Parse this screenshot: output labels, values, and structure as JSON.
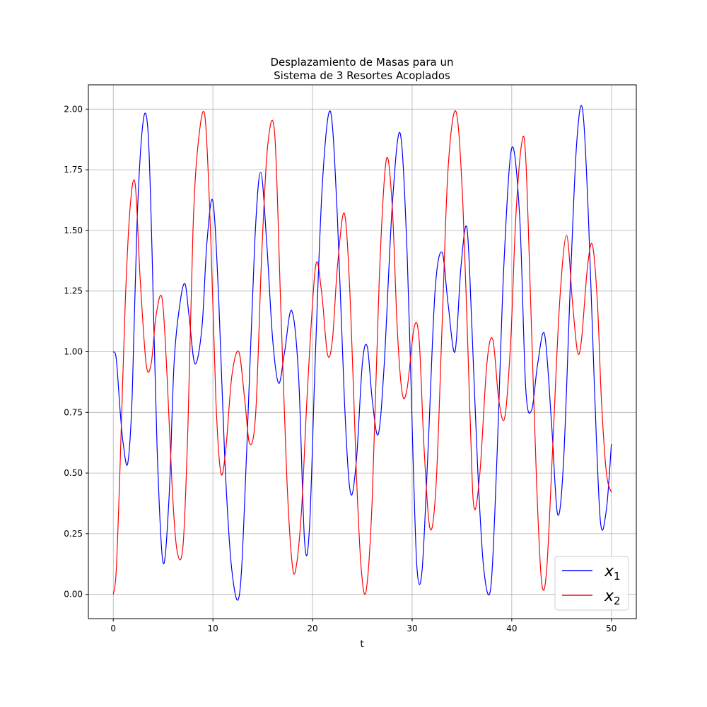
{
  "chart_data": {
    "type": "line",
    "title_lines": [
      "Desplazamiento de Masas para un",
      "Sistema de 3 Resortes Acoplados"
    ],
    "xlabel": "t",
    "ylabel": "",
    "xlim": [
      -2.5,
      52.5
    ],
    "ylim": [
      -0.1,
      2.1
    ],
    "xticks": [
      0,
      10,
      20,
      30,
      40,
      50
    ],
    "yticks": [
      0.0,
      0.25,
      0.5,
      0.75,
      1.0,
      1.25,
      1.5,
      1.75,
      2.0
    ],
    "ytick_labels": [
      "0.00",
      "0.25",
      "0.50",
      "0.75",
      "1.00",
      "1.25",
      "1.50",
      "1.75",
      "2.00"
    ],
    "xtick_labels": [
      "0",
      "10",
      "20",
      "30",
      "40",
      "50"
    ],
    "grid": true,
    "legend_placement": "lower-right",
    "series": [
      {
        "name": "x",
        "name_sub": "1",
        "color": "#0000ff",
        "x": [
          0.0,
          0.3,
          0.7,
          1.0,
          1.45,
          1.9,
          2.4,
          3.0,
          3.5,
          3.9,
          4.4,
          5.0,
          5.6,
          6.1,
          6.7,
          7.2,
          7.6,
          8.2,
          8.9,
          9.4,
          10.0,
          10.6,
          11.2,
          11.9,
          12.7,
          13.4,
          14.2,
          14.8,
          15.4,
          16.0,
          16.6,
          17.2,
          17.9,
          18.6,
          19.2,
          19.7,
          20.3,
          21.0,
          21.8,
          22.5,
          23.2,
          23.8,
          24.4,
          25.0,
          25.5,
          26.0,
          26.6,
          27.2,
          28.0,
          28.8,
          29.5,
          30.1,
          30.5,
          31.0,
          31.6,
          32.3,
          33.0,
          33.6,
          34.3,
          34.9,
          35.5,
          36.0,
          36.6,
          37.2,
          37.9,
          38.5,
          39.2,
          40.0,
          40.8,
          41.4,
          42.0,
          42.6,
          43.3,
          44.0,
          44.6,
          45.2,
          45.9,
          46.5,
          47.1,
          47.7,
          48.3,
          48.9,
          49.5,
          50.0
        ],
        "y": [
          1.0,
          0.97,
          0.75,
          0.62,
          0.54,
          0.82,
          1.55,
          1.95,
          1.9,
          1.4,
          0.6,
          0.13,
          0.4,
          0.95,
          1.2,
          1.28,
          1.15,
          0.95,
          1.1,
          1.45,
          1.62,
          1.2,
          0.55,
          0.1,
          0.01,
          0.6,
          1.45,
          1.74,
          1.45,
          1.05,
          0.87,
          1.0,
          1.17,
          0.9,
          0.22,
          0.28,
          1.0,
          1.7,
          1.99,
          1.55,
          0.8,
          0.42,
          0.55,
          0.95,
          1.02,
          0.8,
          0.66,
          0.95,
          1.6,
          1.9,
          1.4,
          0.55,
          0.1,
          0.1,
          0.6,
          1.25,
          1.41,
          1.2,
          1.0,
          1.35,
          1.51,
          1.1,
          0.5,
          0.1,
          0.03,
          0.55,
          1.35,
          1.84,
          1.55,
          0.85,
          0.76,
          0.95,
          1.07,
          0.7,
          0.33,
          0.55,
          1.3,
          1.85,
          2.0,
          1.55,
          0.85,
          0.3,
          0.35,
          0.62
        ]
      },
      {
        "name": "x",
        "name_sub": "2",
        "color": "#ff0000",
        "x": [
          0.0,
          0.3,
          0.7,
          1.2,
          1.7,
          2.2,
          2.7,
          3.3,
          3.8,
          4.3,
          4.9,
          5.4,
          5.9,
          6.4,
          7.0,
          7.5,
          8.0,
          8.5,
          9.2,
          9.8,
          10.3,
          10.8,
          11.3,
          11.9,
          12.6,
          13.2,
          13.7,
          14.3,
          14.9,
          15.5,
          16.2,
          16.8,
          17.4,
          17.9,
          18.3,
          18.9,
          19.5,
          20.3,
          20.9,
          21.5,
          22.0,
          22.5,
          23.2,
          23.8,
          24.4,
          24.9,
          25.4,
          26.0,
          26.7,
          27.4,
          28.0,
          28.5,
          29.0,
          29.5,
          30.2,
          30.7,
          31.2,
          31.8,
          32.4,
          33.0,
          33.6,
          34.4,
          35.1,
          35.8,
          36.2,
          36.8,
          37.5,
          38.1,
          38.7,
          39.3,
          39.9,
          40.4,
          41.0,
          41.4,
          41.9,
          42.5,
          43.0,
          43.5,
          44.1,
          44.8,
          45.5,
          46.1,
          46.6,
          47.0,
          47.6,
          48.1,
          48.6,
          49.0,
          49.5,
          50.0
        ],
        "y": [
          0.0,
          0.1,
          0.55,
          1.2,
          1.6,
          1.69,
          1.3,
          0.95,
          0.95,
          1.15,
          1.22,
          0.9,
          0.45,
          0.18,
          0.2,
          0.7,
          1.5,
          1.85,
          1.97,
          1.45,
          0.8,
          0.5,
          0.6,
          0.9,
          1.0,
          0.8,
          0.62,
          0.75,
          1.4,
          1.85,
          1.9,
          1.2,
          0.5,
          0.15,
          0.1,
          0.35,
          0.85,
          1.35,
          1.25,
          0.99,
          1.05,
          1.35,
          1.57,
          1.2,
          0.5,
          0.1,
          0.02,
          0.4,
          1.3,
          1.79,
          1.6,
          1.1,
          0.83,
          0.85,
          1.1,
          1.05,
          0.6,
          0.27,
          0.45,
          1.1,
          1.75,
          1.99,
          1.6,
          0.75,
          0.36,
          0.5,
          0.95,
          1.05,
          0.8,
          0.73,
          1.05,
          1.55,
          1.86,
          1.8,
          1.2,
          0.45,
          0.05,
          0.1,
          0.6,
          1.2,
          1.48,
          1.2,
          1.0,
          1.05,
          1.35,
          1.44,
          1.2,
          0.8,
          0.5,
          0.42
        ]
      }
    ]
  }
}
